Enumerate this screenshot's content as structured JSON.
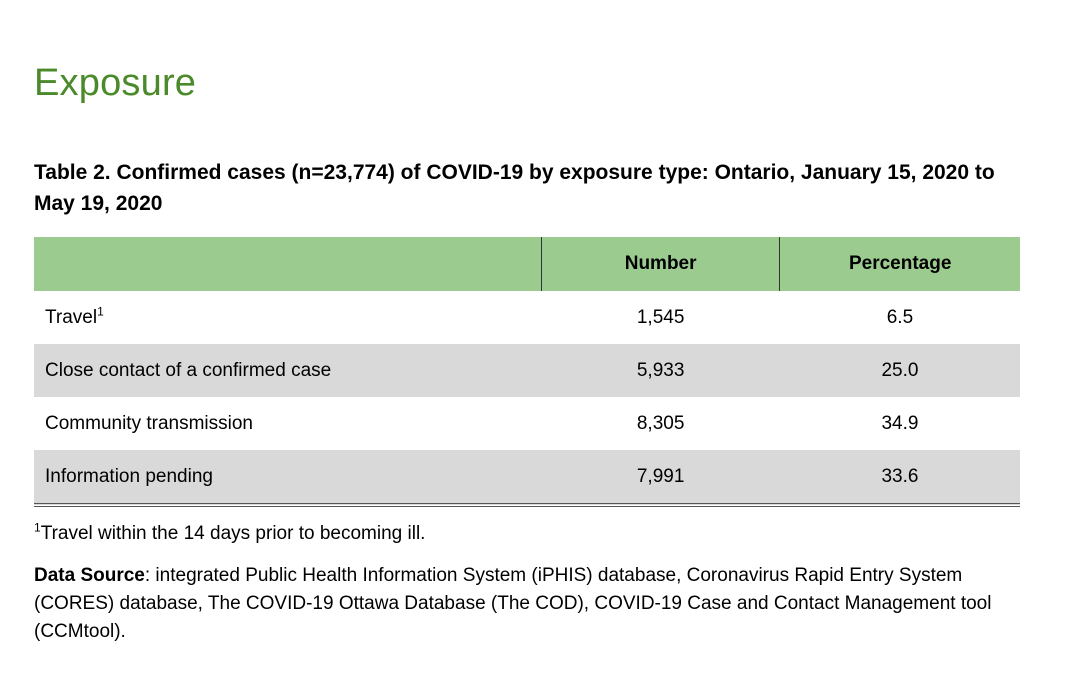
{
  "heading": "Exposure",
  "caption": "Table 2. Confirmed cases (n=23,774) of COVID-19 by exposure type: Ontario, January 15, 2020 to May 19, 2020",
  "table": {
    "headers": [
      "",
      "Number",
      "Percentage"
    ],
    "rows": [
      {
        "label": "Travel",
        "footnote_mark": "1",
        "number": "1,545",
        "percentage": "6.5"
      },
      {
        "label": "Close contact of a confirmed case",
        "footnote_mark": "",
        "number": "5,933",
        "percentage": "25.0"
      },
      {
        "label": "Community transmission",
        "footnote_mark": "",
        "number": "8,305",
        "percentage": "34.9"
      },
      {
        "label": "Information pending",
        "footnote_mark": "",
        "number": "7,991",
        "percentage": "33.6"
      }
    ]
  },
  "footnote": {
    "mark": "1",
    "text": "Travel within the 14 days prior to becoming ill."
  },
  "source": {
    "label": "Data Source",
    "text": ": integrated Public Health Information System (iPHIS) database, Coronavirus Rapid Entry System (CORES) database, The COVID-19 Ottawa Database (The COD), COVID-19 Case and Contact Management tool (CCMtool)."
  },
  "colors": {
    "heading": "#4a8a2a",
    "header_fill": "#9bcb8f",
    "row_shade": "#d9d9d9"
  }
}
